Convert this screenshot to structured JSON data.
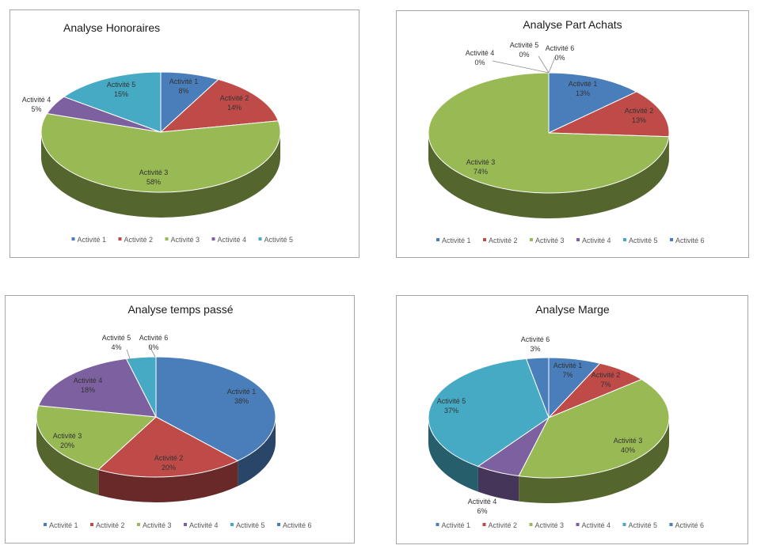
{
  "colors": {
    "Activité 1": "#4a7ebb",
    "Activité 2": "#be4b48",
    "Activité 3": "#98b954",
    "Activité 4": "#7d60a0",
    "Activité 5": "#46aac5",
    "Activité 6": "#4a7ebb"
  },
  "chart_data": [
    {
      "type": "pie",
      "title": "Analyse Honoraires",
      "categories": [
        "Activité 1",
        "Activité 2",
        "Activité 3",
        "Activité 4",
        "Activité 5"
      ],
      "values": [
        8,
        14,
        58,
        5,
        15
      ],
      "labels": [
        "8%",
        "14%",
        "58%",
        "5%",
        "15%"
      ],
      "legend_entries": [
        "Activité 1",
        "Activité 2",
        "Activité 3",
        "Activité 4",
        "Activité 5"
      ],
      "legend": "bottom"
    },
    {
      "type": "pie",
      "title": "Analyse Part Achats",
      "categories": [
        "Activité 1",
        "Activité 2",
        "Activité 3",
        "Activité 4",
        "Activité 5",
        "Activité 6"
      ],
      "values": [
        13,
        13,
        74,
        0,
        0,
        0
      ],
      "labels": [
        "13%",
        "13%",
        "74%",
        "0%",
        "0%",
        "0%"
      ],
      "legend_entries": [
        "Activité 1",
        "Activité 2",
        "Activité 3",
        "Activité 4",
        "Activité 5",
        "Activité 6"
      ],
      "legend": "bottom"
    },
    {
      "type": "pie",
      "title": "Analyse temps passé",
      "categories": [
        "Activité 1",
        "Activité 2",
        "Activité 3",
        "Activité 4",
        "Activité 5",
        "Activité 6"
      ],
      "values": [
        38,
        20,
        20,
        18,
        4,
        0
      ],
      "labels": [
        "38%",
        "20%",
        "20%",
        "18%",
        "4%",
        "0%"
      ],
      "legend_entries": [
        "Activité 1",
        "Activité 2",
        "Activité 3",
        "Activité 4",
        "Activité 5",
        "Activité 6"
      ],
      "legend": "bottom"
    },
    {
      "type": "pie",
      "title": "Analyse Marge",
      "categories": [
        "Activité 1",
        "Activité 2",
        "Activité 3",
        "Activité 4",
        "Activité 5",
        "Activité 6"
      ],
      "values": [
        7,
        7,
        40,
        6,
        37,
        3
      ],
      "labels": [
        "7%",
        "7%",
        "40%",
        "6%",
        "37%",
        "3%"
      ],
      "legend_entries": [
        "Activité 1",
        "Activité 2",
        "Activité 3",
        "Activité 4",
        "Activité 5",
        "Activité 6"
      ],
      "legend": "bottom"
    }
  ]
}
